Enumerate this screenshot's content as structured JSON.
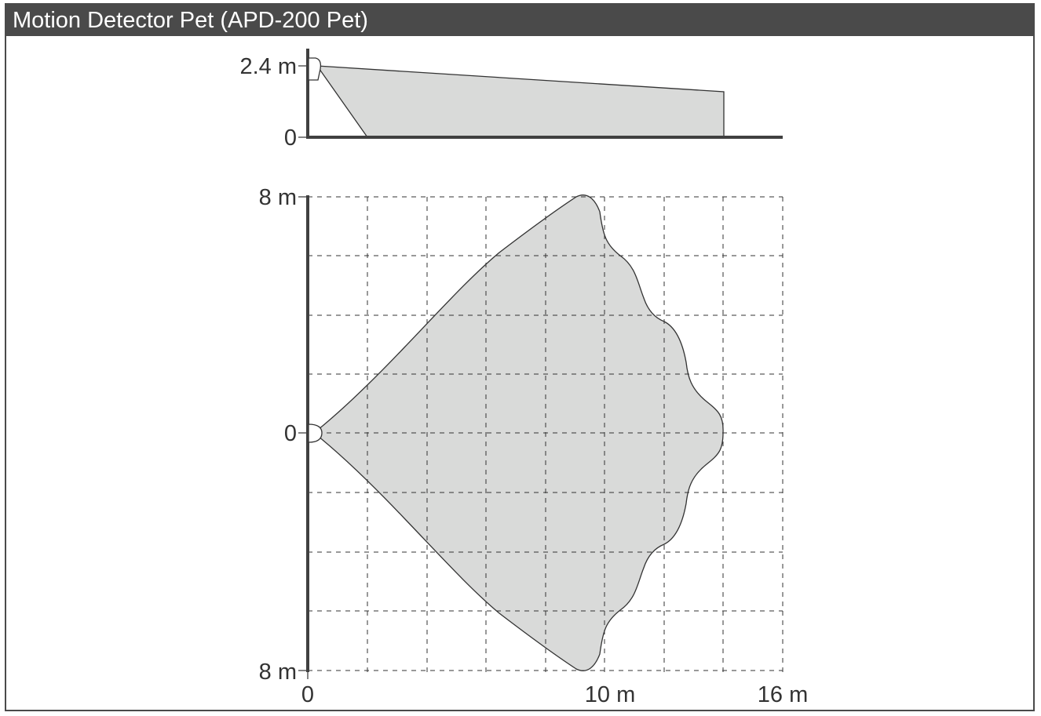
{
  "title": "Motion Detector Pet (APD-200 Pet)",
  "side_view": {
    "y_labels": {
      "top": "2.4 m",
      "bottom": "0"
    }
  },
  "top_view": {
    "y_labels": {
      "top": "8 m",
      "middle": "0",
      "bottom": "8 m"
    },
    "x_labels": {
      "start": "0",
      "mid": "10 m",
      "end": "16 m"
    }
  },
  "colors": {
    "title_bar": "#4a4a4a",
    "coverage_fill": "#d9dad9",
    "axis": "#404040",
    "grid": "#333333"
  }
}
